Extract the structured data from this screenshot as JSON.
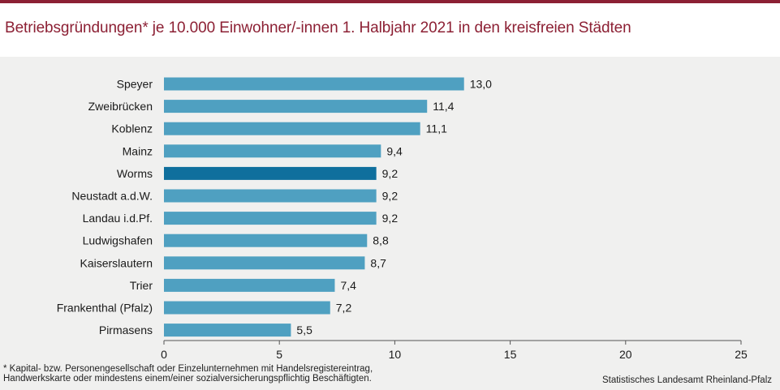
{
  "header": {
    "title": "Betriebsgründungen* je 10.000 Einwohner/-innen 1. Halbjahr 2021  in den kreisfreien Städten"
  },
  "footer": {
    "footnote_line1": "* Kapital- bzw. Personengesellschaft  oder Einzelunternehmen  mit  Handelsregistereintrag,",
    "footnote_line2": "Handwerkskarte  oder  mindestens  einem/einer  sozialversicherungspflichtig  Beschäftigten.",
    "source": "Statistisches Landesamt Rheinland-Pfalz"
  },
  "colors": {
    "title": "#8c2034",
    "bar": "#4fa0c1",
    "bar_highlight": "#0f6f9d",
    "background": "#f0f0ef"
  },
  "chart_data": {
    "type": "bar",
    "orientation": "horizontal",
    "categories": [
      "Speyer",
      "Zweibrücken",
      "Koblenz",
      "Mainz",
      "Worms",
      "Neustadt a.d.W.",
      "Landau i.d.Pf.",
      "Ludwigshafen",
      "Kaiserslautern",
      "Trier",
      "Frankenthal (Pfalz)",
      "Pirmasens"
    ],
    "values": [
      13.0,
      11.4,
      11.1,
      9.4,
      9.2,
      9.2,
      9.2,
      8.8,
      8.7,
      7.4,
      7.2,
      5.5
    ],
    "value_labels": [
      "13,0",
      "11,4",
      "11,1",
      "9,4",
      "9,2",
      "9,2",
      "9,2",
      "8,8",
      "8,7",
      "7,4",
      "7,2",
      "5,5"
    ],
    "highlight": "Worms",
    "xlim": [
      0,
      25
    ],
    "xticks": [
      0,
      5,
      10,
      15,
      20,
      25
    ],
    "grid": false,
    "title": "",
    "xlabel": "",
    "ylabel": ""
  }
}
